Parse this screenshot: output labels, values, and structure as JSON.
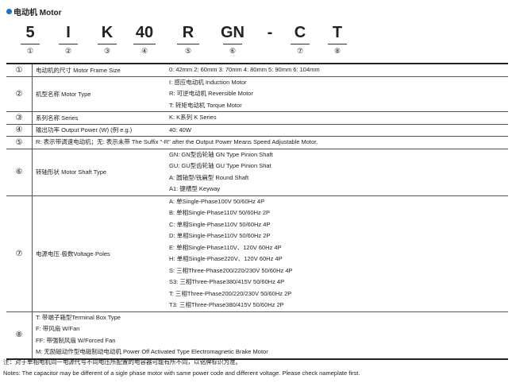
{
  "title": "电动机 Motor",
  "accent": "#1a73c8",
  "code": [
    {
      "text": "5",
      "num": "①"
    },
    {
      "text": "I",
      "num": "②"
    },
    {
      "text": "K",
      "num": "③"
    },
    {
      "text": "40",
      "num": "④"
    },
    {
      "text": "R",
      "num": "⑤"
    },
    {
      "text": "GN",
      "num": "⑥"
    },
    {
      "text": "-",
      "num": ""
    },
    {
      "text": "C",
      "num": "⑦"
    },
    {
      "text": "T",
      "num": "⑧"
    }
  ],
  "rows": [
    {
      "num": "①",
      "label": "电动机的尺寸 Motor Frame Size",
      "values": [
        "0: 42mm  2: 60mm  3: 70mm  4: 80mm  5: 90mm  6: 104mm"
      ]
    },
    {
      "num": "②",
      "label": "机型名称 Motor Type",
      "values": [
        "I: 感应电动机 Induction Motor",
        "R: 可逆电动机 Reversible Motor",
        "T: 转矩电动机 Torque Motor"
      ]
    },
    {
      "num": "③",
      "label": "系列名称 Series",
      "values": [
        "K: K系列 K Series"
      ]
    },
    {
      "num": "④",
      "label": "输出功率 Output Power (W) (例 e.g.)",
      "values": [
        "40: 40W"
      ]
    },
    {
      "num": "⑤",
      "label": "R: 表示带调速电动机；无: 表示未带   The Suffix \"-R\" after the Output Power Means Speed Adjustable Motor.",
      "values": []
    },
    {
      "num": "⑥",
      "label": "转轴形状 Motor Shaft Type",
      "values": [
        "GN: GN型齿轮轴 GN Type Pinion Shaft",
        "GU: GU型齿轮轴 GU Type Pinion Shat",
        "A: 圆轴型/铣扁型 Round Shaft",
        "A1: 键槽型 Keyway"
      ]
    },
    {
      "num": "⑦",
      "label": "电源电压·极数Voltage·Poles",
      "values": [
        "A: 单Single-Phase100V 50/60Hz  4P",
        "B: 单相Single-Phase110V 50/60Hz  2P",
        "C: 单相Single-Phase110V 50/60Hz  4P",
        "D: 单相Single-Phase110V 50/60Hz  2P",
        "E: 单相Single-Phase110V、120V 60Hz  4P",
        "H: 单相Single-Phase220V、120V 60Hz  4P",
        "S: 三相Three-Phase200/220/230V 50/60Hz  4P",
        "S3: 三相Three-Phase380/415V 50/60Hz  4P",
        "T: 三相Three-Phase200/220/230V 50/60Hz  2P",
        "T3: 三相Three-Phase380/415V 50/60Hz  2P"
      ]
    },
    {
      "num": "⑧",
      "label": "",
      "values": [
        "T: 带端子箱型Terminal Box Type",
        "F: 带风扇 W/Fan",
        "FF: 带强制风扇 W/Forced Fan",
        "M: 无励磁动作型电磁制动电动机 Power Off Activated Type Electromagnetic Brake Motor"
      ]
    }
  ],
  "notes": [
    "注：对于单相电机同一电源代号不同电压所配置的电容器可能有所不同，以铭牌标识为准。",
    "Notes: The capacitor may be different of a sigle phase motor with same power code and different voltage. Please check nameplate first."
  ]
}
